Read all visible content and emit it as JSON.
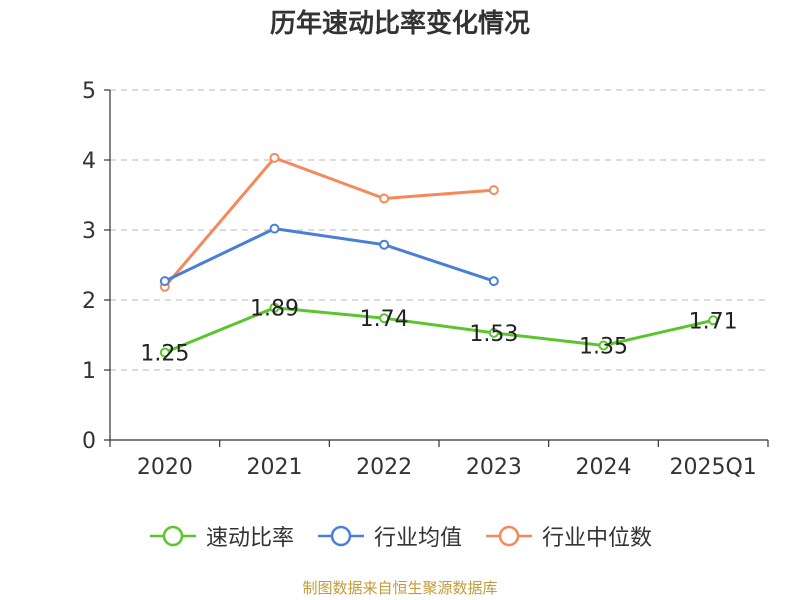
{
  "chart_data": {
    "type": "line",
    "title": "历年速动比率变化情况",
    "categories": [
      "2020",
      "2021",
      "2022",
      "2023",
      "2024",
      "2025Q1"
    ],
    "ylim": [
      0,
      5
    ],
    "yticks": [
      0,
      1,
      2,
      3,
      4,
      5
    ],
    "grid": true,
    "legend_position": "bottom",
    "series": [
      {
        "name": "速动比率",
        "color": "#5ac52e",
        "values": [
          1.25,
          1.89,
          1.74,
          1.53,
          1.35,
          1.71
        ],
        "labels": [
          "1.25",
          "1.89",
          "1.74",
          "1.53",
          "1.35",
          "1.71"
        ]
      },
      {
        "name": "行业均值",
        "color": "#4a7fd8",
        "values": [
          2.27,
          3.02,
          2.79,
          2.27,
          null,
          null
        ]
      },
      {
        "name": "行业中位数",
        "color": "#f5895c",
        "values": [
          2.19,
          4.03,
          3.45,
          3.57,
          null,
          null
        ]
      }
    ]
  },
  "watermark": "制图数据来自恒生聚源数据库"
}
